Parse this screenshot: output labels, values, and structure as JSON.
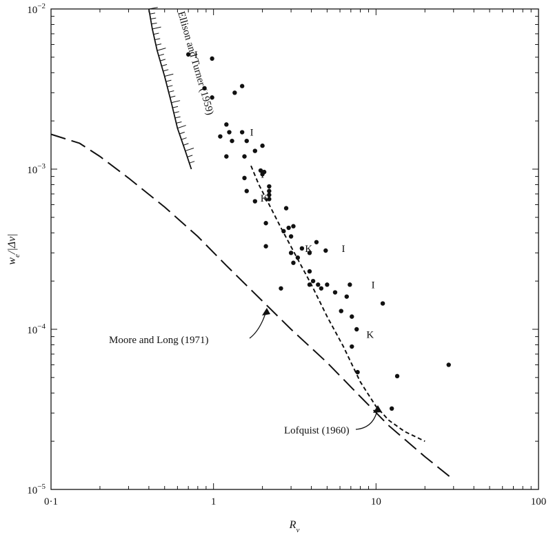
{
  "chart_data": {
    "type": "scatter",
    "xscale": "log",
    "yscale": "log",
    "xlim": [
      0.1,
      100
    ],
    "ylim": [
      1e-05,
      0.01
    ],
    "xlabel": "R_v",
    "ylabel": "w_e/|Δv|",
    "x_ticks": [
      {
        "value": 0.1,
        "label": "0·1"
      },
      {
        "value": 1,
        "label": "1"
      },
      {
        "value": 10,
        "label": "10"
      },
      {
        "value": 100,
        "label": "100"
      }
    ],
    "y_ticks": [
      {
        "value": 1e-05,
        "base": "10",
        "exp": "−5"
      },
      {
        "value": 0.0001,
        "base": "10",
        "exp": "−4"
      },
      {
        "value": 0.001,
        "base": "10",
        "exp": "−3"
      },
      {
        "value": 0.01,
        "base": "10",
        "exp": "−2"
      }
    ],
    "grid": false,
    "series": [
      {
        "style": "dots",
        "points": [
          [
            0.7,
            0.0052
          ],
          [
            0.98,
            0.0049
          ],
          [
            0.88,
            0.0032
          ],
          [
            0.98,
            0.0028
          ],
          [
            1.35,
            0.003
          ],
          [
            1.5,
            0.0033
          ],
          [
            1.2,
            0.0019
          ],
          [
            1.25,
            0.0017
          ],
          [
            1.5,
            0.0017
          ],
          [
            1.6,
            0.0015
          ],
          [
            1.1,
            0.0016
          ],
          [
            1.3,
            0.0015
          ],
          [
            1.2,
            0.0012
          ],
          [
            1.55,
            0.0012
          ],
          [
            1.8,
            0.0013
          ],
          [
            2.0,
            0.0014
          ],
          [
            1.95,
            0.00098
          ],
          [
            2.05,
            0.00096
          ],
          [
            2.0,
            0.00093
          ],
          [
            1.55,
            0.00088
          ],
          [
            2.2,
            0.00078
          ],
          [
            2.2,
            0.00073
          ],
          [
            2.2,
            0.00069
          ],
          [
            2.2,
            0.00065
          ],
          [
            1.6,
            0.00073
          ],
          [
            1.8,
            0.00063
          ],
          [
            2.1,
            0.00046
          ],
          [
            2.1,
            0.00033
          ],
          [
            2.8,
            0.00057
          ],
          [
            2.7,
            0.00041
          ],
          [
            2.9,
            0.00043
          ],
          [
            3.1,
            0.00044
          ],
          [
            3.0,
            0.00038
          ],
          [
            3.0,
            0.0003
          ],
          [
            3.5,
            0.00032
          ],
          [
            3.3,
            0.00028
          ],
          [
            3.9,
            0.0003
          ],
          [
            3.9,
            0.00023
          ],
          [
            4.3,
            0.00035
          ],
          [
            4.9,
            0.00031
          ],
          [
            3.1,
            0.00026
          ],
          [
            4.1,
            0.0002
          ],
          [
            4.4,
            0.00019
          ],
          [
            4.6,
            0.00018
          ],
          [
            3.9,
            0.00019
          ],
          [
            5.0,
            0.00019
          ],
          [
            2.6,
            0.00018
          ],
          [
            5.6,
            0.00017
          ],
          [
            6.1,
            0.00013
          ],
          [
            6.9,
            0.00019
          ],
          [
            6.6,
            0.00016
          ],
          [
            7.1,
            0.00012
          ],
          [
            7.6,
            0.0001
          ],
          [
            7.1,
            7.8e-05
          ],
          [
            7.7,
            5.4e-05
          ],
          [
            11.0,
            0.000145
          ],
          [
            13.5,
            5.1e-05
          ],
          [
            12.5,
            3.2e-05
          ],
          [
            28.0,
            6e-05
          ]
        ]
      },
      {
        "name": "Lofquist (1960)",
        "style": "short-dash",
        "points": [
          [
            1.7,
            0.00105
          ],
          [
            1.9,
            0.0008
          ],
          [
            2.2,
            0.0006
          ],
          [
            2.6,
            0.00043
          ],
          [
            3.2,
            0.00029
          ],
          [
            4.0,
            0.00019
          ],
          [
            5.0,
            0.00012
          ],
          [
            6.3,
            7.8e-05
          ],
          [
            8.0,
            4.7e-05
          ],
          [
            10.0,
            3.3e-05
          ],
          [
            12.0,
            2.7e-05
          ],
          [
            15.0,
            2.3e-05
          ],
          [
            20.0,
            2e-05
          ]
        ]
      },
      {
        "name": "Moore and Long (1971)",
        "style": "long-dash",
        "points": [
          [
            0.1,
            0.00165
          ],
          [
            0.15,
            0.00145
          ],
          [
            0.2,
            0.0012
          ],
          [
            0.3,
            0.00088
          ],
          [
            0.5,
            0.00058
          ],
          [
            0.8,
            0.00038
          ],
          [
            1.2,
            0.00025
          ],
          [
            2.0,
            0.00015
          ],
          [
            3.0,
            0.0001
          ],
          [
            5.0,
            6.2e-05
          ],
          [
            8.0,
            3.8e-05
          ],
          [
            12.0,
            2.5e-05
          ],
          [
            20.0,
            1.6e-05
          ],
          [
            30.0,
            1.15e-05
          ]
        ]
      },
      {
        "name": "Ellison and Turner (1959)",
        "style": "hatched-band",
        "points": [
          [
            0.4,
            0.01
          ],
          [
            0.42,
            0.0075
          ],
          [
            0.45,
            0.0055
          ],
          [
            0.5,
            0.0038
          ],
          [
            0.55,
            0.0026
          ],
          [
            0.6,
            0.0018
          ],
          [
            0.67,
            0.0013
          ],
          [
            0.73,
            0.001
          ]
        ]
      }
    ],
    "annotations": [
      {
        "text": "I",
        "x": 0.78,
        "y": 0.0052
      },
      {
        "text": "I",
        "x": 1.72,
        "y": 0.0017
      },
      {
        "text": "I",
        "x": 2.0,
        "y": 0.00093
      },
      {
        "text": "K",
        "x": 2.05,
        "y": 0.00066
      },
      {
        "text": "K",
        "x": 3.85,
        "y": 0.00032
      },
      {
        "text": "I",
        "x": 6.3,
        "y": 0.00032
      },
      {
        "text": "I",
        "x": 9.6,
        "y": 0.00019
      },
      {
        "text": "K",
        "x": 9.2,
        "y": 9.3e-05
      }
    ],
    "labels": {
      "ellison": "Ellison and Turner (1959)",
      "moore": "Moore and Long (1971)",
      "lofquist": "Lofquist (1960)"
    }
  }
}
